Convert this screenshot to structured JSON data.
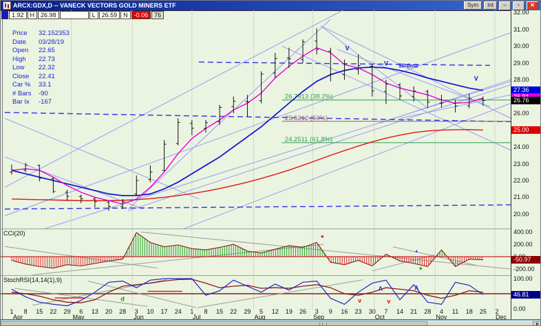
{
  "window": {
    "title": "ARCX:GDX,D -- VANECK VECTORS GOLD MINERS ETF",
    "buttons": [
      "Sym",
      "Int"
    ],
    "minimize_label": "_",
    "close_label": "x"
  },
  "quote_bar": {
    "fields": [
      {
        "t": "1.92",
        "k": ""
      },
      {
        "t": "H",
        "k": "lbl"
      },
      {
        "t": "26.98",
        "k": ""
      },
      {
        "t": "",
        "k": "blank"
      },
      {
        "t": "L",
        "k": "lbl"
      },
      {
        "t": "26.59",
        "k": ""
      },
      {
        "t": "N",
        "k": "lbl"
      },
      {
        "t": "-0.06",
        "k": "neg"
      },
      {
        "t": "76",
        "k": "gray"
      }
    ]
  },
  "info_panel": {
    "rows": [
      [
        "Price",
        "32.152353"
      ],
      [
        "Date",
        "03/28/19"
      ],
      [
        "Open",
        "22.65"
      ],
      [
        "High",
        "22.73"
      ],
      [
        "Low",
        "22.32"
      ],
      [
        "Close",
        "22.41"
      ],
      [
        "Car %",
        "33.1"
      ],
      [
        "# Bars",
        "-90"
      ],
      [
        "Bar Ix",
        "-167"
      ]
    ]
  },
  "x_axis": {
    "tick_labels": [
      "1",
      "8",
      "15",
      "22",
      "29",
      "6",
      "13",
      "20",
      "28",
      "3",
      "10",
      "17",
      "24",
      "1",
      "8",
      "15",
      "22",
      "29",
      "5",
      "12",
      "19",
      "26",
      "3",
      "9",
      "16",
      "23",
      "30",
      "7",
      "14",
      "21",
      "28",
      "4",
      "11",
      "18",
      "25",
      "2"
    ],
    "months": [
      {
        "label": "Apr",
        "i": 0.1
      },
      {
        "label": "May",
        "i": 4.4
      },
      {
        "label": "Jun",
        "i": 8.8
      },
      {
        "label": "Jul",
        "i": 13.05
      },
      {
        "label": "Aug",
        "i": 17.5
      },
      {
        "label": "Sep",
        "i": 21.75
      },
      {
        "label": "Oct",
        "i": 26.2
      },
      {
        "label": "Nov",
        "i": 30.6
      },
      {
        "label": "Dec",
        "i": 34.9
      }
    ],
    "month_lines_i": [
      4.3,
      8.7,
      13.0,
      17.45,
      21.7,
      26.15,
      30.55,
      34.85
    ]
  },
  "chart_data": {
    "type": "ohlc-bar-with-indicators",
    "symbol": "ARCX:GDX",
    "interval": "D",
    "price_panel": {
      "ylim": [
        19.14,
        32.13
      ],
      "yticks": [
        {
          "v": 32,
          "label": "32.00"
        },
        {
          "v": 31,
          "label": "31.00"
        },
        {
          "v": 30,
          "label": "30.00"
        },
        {
          "v": 29,
          "label": "29.00"
        },
        {
          "v": 28,
          "label": "28.00"
        },
        {
          "v": 27,
          "label": "27.00"
        },
        {
          "v": 26,
          "label": "26.00"
        },
        {
          "v": 25,
          "label": "25.00"
        },
        {
          "v": 24,
          "label": "24.00"
        },
        {
          "v": 23,
          "label": "23.00"
        },
        {
          "v": 22,
          "label": "22.00"
        },
        {
          "v": 21,
          "label": "21.00"
        },
        {
          "v": 20,
          "label": "20.00"
        }
      ],
      "bars": {
        "dates": [
          "Apr 1",
          "Apr 8",
          "Apr 15",
          "Apr 22",
          "Apr 29",
          "May 6",
          "May 13",
          "May 20",
          "May 28",
          "Jun 3",
          "Jun 10",
          "Jun 17",
          "Jun 24",
          "Jul 1",
          "Jul 8",
          "Jul 15",
          "Jul 22",
          "Jul 29",
          "Aug 5",
          "Aug 12",
          "Aug 19",
          "Aug 26",
          "Sep 3",
          "Sep 9",
          "Sep 16",
          "Sep 23",
          "Sep 30",
          "Oct 7",
          "Oct 14",
          "Oct 21",
          "Oct 28",
          "Nov 4",
          "Nov 11",
          "Nov 18",
          "Nov 25"
        ],
        "open": [
          22.5,
          22.62,
          22.9,
          22.1,
          21.3,
          21.05,
          20.9,
          20.7,
          20.45,
          21.2,
          22.05,
          22.6,
          24.2,
          25.4,
          25.1,
          25.5,
          26.4,
          26.7,
          26.75,
          28.4,
          29.3,
          29.2,
          30.3,
          29.7,
          28.3,
          28.6,
          28.8,
          27.3,
          27.7,
          27.0,
          27.3,
          26.6,
          26.6,
          26.45,
          26.85
        ],
        "high": [
          22.95,
          23.05,
          22.95,
          22.2,
          21.45,
          21.15,
          21.0,
          20.8,
          20.9,
          22.3,
          22.9,
          24.4,
          25.7,
          25.6,
          25.6,
          26.5,
          27.0,
          27.1,
          28.5,
          29.6,
          29.9,
          30.4,
          31.05,
          29.9,
          29.2,
          29.5,
          28.9,
          28.0,
          27.8,
          27.6,
          27.4,
          27.1,
          26.8,
          27.15,
          27.0
        ],
        "low": [
          22.35,
          22.5,
          21.95,
          21.25,
          20.8,
          20.65,
          20.4,
          20.2,
          20.3,
          21.1,
          21.9,
          22.55,
          24.1,
          24.7,
          24.85,
          25.3,
          26.0,
          25.8,
          26.6,
          28.1,
          28.7,
          29.0,
          29.5,
          27.9,
          28.0,
          28.3,
          27.0,
          26.55,
          26.8,
          26.7,
          26.3,
          26.35,
          26.05,
          26.3,
          26.45
        ],
        "close": [
          22.62,
          22.92,
          22.13,
          21.34,
          21.06,
          20.91,
          20.74,
          20.45,
          20.72,
          22.0,
          22.5,
          24.16,
          25.45,
          25.11,
          25.44,
          26.35,
          26.72,
          26.68,
          28.33,
          29.26,
          29.24,
          30.26,
          29.8,
          28.32,
          28.55,
          28.84,
          27.34,
          27.74,
          27.03,
          27.32,
          26.66,
          26.62,
          26.43,
          26.89,
          26.76
        ]
      },
      "ma_fast": {
        "name": "fast-ma",
        "color": "#e800d8",
        "values": [
          22.6,
          22.7,
          22.6,
          22.2,
          21.7,
          21.3,
          21.0,
          20.8,
          20.6,
          20.9,
          21.6,
          22.5,
          23.6,
          24.5,
          25.1,
          25.6,
          26.2,
          26.6,
          27.2,
          28.1,
          28.8,
          29.4,
          29.9,
          29.6,
          28.9,
          28.7,
          28.3,
          27.8,
          27.5,
          27.3,
          27.1,
          26.8,
          26.6,
          26.65,
          26.91
        ]
      },
      "ma_50": {
        "name": "50-dma",
        "color": "#1a1ad0",
        "values": [
          22.6,
          22.4,
          22.2,
          22.0,
          21.8,
          21.6,
          21.4,
          21.2,
          21.1,
          21.1,
          21.2,
          21.5,
          21.9,
          22.4,
          22.9,
          23.4,
          24.0,
          24.6,
          25.2,
          25.9,
          26.6,
          27.3,
          27.9,
          28.3,
          28.55,
          28.7,
          28.75,
          28.7,
          28.55,
          28.35,
          28.1,
          27.9,
          27.7,
          27.5,
          27.36
        ]
      },
      "ma_200": {
        "name": "200-dma",
        "color": "#e01414",
        "values": [
          20.9,
          20.88,
          20.86,
          20.84,
          20.82,
          20.8,
          20.8,
          20.8,
          20.82,
          20.86,
          20.92,
          21.0,
          21.1,
          21.22,
          21.36,
          21.52,
          21.7,
          21.9,
          22.12,
          22.36,
          22.62,
          22.9,
          23.2,
          23.5,
          23.78,
          24.05,
          24.3,
          24.52,
          24.7,
          24.85,
          24.95,
          25.0,
          25.02,
          25.03,
          25.0
        ]
      },
      "fib_levels": [
        {
          "value": 26.7913,
          "label": "26.7913 (38.2%)",
          "color": "#2f9e4f",
          "start_i": 19.5
        },
        {
          "value": 25.5212,
          "label": "25.5212 (50%)",
          "color": "#a0527e",
          "start_i": 19.5
        },
        {
          "value": 24.2511,
          "label": "24.2511 (61.8%)",
          "color": "#2f9e4f",
          "start_i": 19.5
        }
      ],
      "trendlines": [
        {
          "i1": -0.5,
          "p1": 21.6,
          "i2": 24.5,
          "p2": 32.4
        },
        {
          "i1": -0.5,
          "p1": 19.9,
          "i2": 36,
          "p2": 30.8
        },
        {
          "i1": 1.5,
          "p1": 18.9,
          "i2": 36,
          "p2": 27.9
        },
        {
          "i1": 8.4,
          "p1": 20.3,
          "i2": 23.0,
          "p2": 31.6
        },
        {
          "i1": 8.4,
          "p1": 20.2,
          "i2": 36,
          "p2": 27.7
        },
        {
          "i1": 22.3,
          "p1": 31.2,
          "i2": 36,
          "p2": 25.7
        },
        {
          "i1": 22.3,
          "p1": 31.2,
          "i2": 30.0,
          "p2": 26.3
        },
        {
          "i1": 19.5,
          "p1": 30.0,
          "i2": 36,
          "p2": 23.8
        },
        {
          "i1": 23.5,
          "p1": 29.8,
          "i2": 34.5,
          "p2": 26.4
        },
        {
          "i1": 26.5,
          "p1": 25.4,
          "i2": 36,
          "p2": 28.0
        },
        {
          "i1": 28.0,
          "p1": 25.7,
          "i2": 36,
          "p2": 27.1
        },
        {
          "i1": -0.5,
          "p1": 23.4,
          "i2": 9.5,
          "p2": 20.3
        },
        {
          "i1": -0.5,
          "p1": 25.7,
          "i2": 13.5,
          "p2": 20.9
        },
        {
          "i1": 12.0,
          "p1": 19.0,
          "i2": 36,
          "p2": 26.6
        },
        {
          "dash": true,
          "i1": -0.5,
          "p1": 20.3,
          "i2": 36,
          "p2": 20.55
        },
        {
          "dash": true,
          "i1": -0.5,
          "p1": 26.05,
          "i2": 36,
          "p2": 25.5
        },
        {
          "dash": true,
          "i1": 13.5,
          "p1": 29.05,
          "i2": 34.5,
          "p2": 28.85
        }
      ],
      "markers": [
        {
          "i": 24.2,
          "p": 29.75,
          "text": "V",
          "color": "#1414d2"
        },
        {
          "i": 27.0,
          "p": 28.85,
          "text": "V",
          "color": "#1414d2"
        },
        {
          "i": 28.6,
          "p": 28.72,
          "text": "50-dma",
          "color": "#1414d2",
          "size": 8
        },
        {
          "i": 33.5,
          "p": 27.95,
          "text": "V",
          "color": "#1414d2"
        }
      ],
      "axis_tags": [
        {
          "text": "27.36",
          "value": 27.36,
          "bg": "#0000dd",
          "fg": "#ffffff"
        },
        {
          "text": "26.91",
          "value": 26.95,
          "bg": "#dd00dd",
          "fg": "#ffffff"
        },
        {
          "text": "26.76",
          "value": 26.76,
          "bg": "#000000",
          "fg": "#ffffff"
        },
        {
          "text": "25.00",
          "value": 25.0,
          "bg": "#dd0000",
          "fg": "#ffffff"
        }
      ]
    },
    "cci_panel": {
      "label": "CCI(20)",
      "ylim": [
        -300,
        444
      ],
      "yticks": [
        {
          "v": 400,
          "label": "400.00"
        },
        {
          "v": 200,
          "label": "200.00"
        },
        {
          "v": 0,
          "label": "0.00"
        },
        {
          "v": -200,
          "label": "-200.00"
        }
      ],
      "values": [
        -60,
        -120,
        -160,
        -185,
        -130,
        -150,
        -110,
        -70,
        -40,
        390,
        230,
        160,
        190,
        130,
        110,
        150,
        200,
        90,
        60,
        120,
        180,
        150,
        230,
        -90,
        -130,
        -60,
        -150,
        40,
        -70,
        -110,
        -160,
        110,
        -160,
        -40,
        -51
      ],
      "up_color": "#1d9e1d",
      "down_color": "#e03030",
      "outline_color": "#8b1a1a",
      "zero_color": "#cc2222",
      "tag": {
        "text": "-50.97",
        "value": -50.97,
        "bg": "#8b0000",
        "fg": "#ffffff"
      },
      "gray_lines": [
        {
          "i1": 9.3,
          "v1": 400,
          "i2": 36,
          "v2": -200
        },
        {
          "i1": -0.5,
          "v1": 165,
          "i2": 10.5,
          "v2": -185
        },
        {
          "i1": 1.5,
          "v1": -295,
          "i2": 22.5,
          "v2": 200
        },
        {
          "i1": 27.5,
          "v1": 160,
          "i2": 33.5,
          "v2": -140
        },
        {
          "i1": 26.0,
          "v1": -230,
          "i2": 30.5,
          "v2": 30
        }
      ],
      "markers": [
        {
          "i": 22.4,
          "v": 265,
          "text": "*",
          "color": "#ee0000",
          "size": 11
        },
        {
          "i": 29.2,
          "v": 70,
          "text": "▲",
          "color": "#2222ee",
          "size": 6
        },
        {
          "i": 29.5,
          "v": -250,
          "text": "*",
          "color": "#009900",
          "size": 11
        }
      ]
    },
    "stoch_panel": {
      "label": "StochRSI(14,14(1),9)",
      "ylim": [
        -2.3,
        109.1
      ],
      "yticks": [
        {
          "v": 100,
          "label": "100.00"
        },
        {
          "v": 0,
          "label": "0.00"
        }
      ],
      "mid_line": 50,
      "line_color": "#2020c8",
      "signal_color": "#8b1a1a",
      "mid_color": "#8b1a1a",
      "values": [
        65,
        40,
        22,
        15,
        10,
        28,
        55,
        88,
        92,
        70,
        95,
        100,
        100,
        100,
        45,
        60,
        95,
        75,
        55,
        82,
        62,
        88,
        92,
        35,
        15,
        55,
        85,
        95,
        30,
        80,
        22,
        15,
        88,
        78,
        47
      ],
      "signal": [
        55,
        50,
        42,
        30,
        22,
        20,
        30,
        55,
        75,
        80,
        85,
        92,
        97,
        98,
        85,
        70,
        75,
        78,
        68,
        70,
        68,
        75,
        80,
        70,
        50,
        45,
        55,
        70,
        65,
        60,
        45,
        35,
        45,
        60,
        55
      ],
      "tag": {
        "text": "46.81",
        "value": 46.81,
        "bg": "#00008b",
        "fg": "#ffffff"
      },
      "gray_lines": [
        {
          "i1": 1.5,
          "v1": 12,
          "i2": 11.2,
          "v2": 97
        },
        {
          "i1": 5.5,
          "v1": 92,
          "i2": 13.3,
          "v2": 4
        },
        {
          "i1": 13.4,
          "v1": 4,
          "i2": 25.3,
          "v2": 96
        },
        {
          "i1": 0.2,
          "v1": 68,
          "i2": 9.8,
          "v2": 8
        }
      ],
      "red_segments": [
        {
          "i1": 3.1,
          "i2": 5.2,
          "v": 36
        },
        {
          "i1": 9.8,
          "i2": 12.3,
          "v": 58
        }
      ],
      "markers": [
        {
          "i": 8.0,
          "v": 26,
          "text": "d",
          "color": "#00aa00"
        },
        {
          "i": 25.1,
          "v": 20,
          "text": "v",
          "color": "#ee0000"
        },
        {
          "i": 27.2,
          "v": 18,
          "text": "v",
          "color": "#ee0000"
        },
        {
          "i": 26.6,
          "v": 60,
          "text": "Λ",
          "color": "#2222ee"
        },
        {
          "i": 29.2,
          "v": 62,
          "text": "Λ",
          "color": "#2222ee"
        }
      ]
    }
  }
}
